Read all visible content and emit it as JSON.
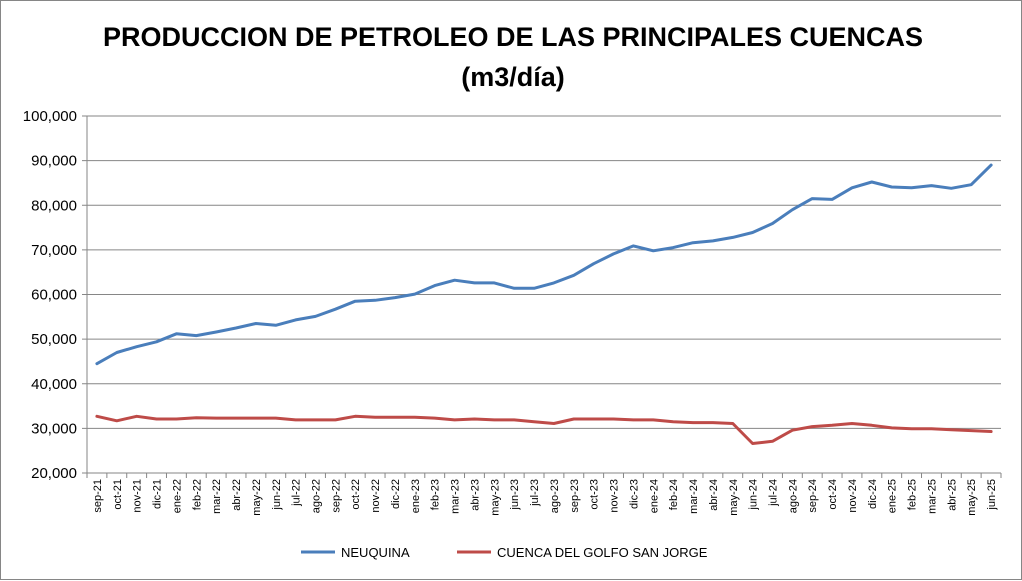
{
  "chart_data": {
    "type": "line",
    "title": "PRODUCCION DE PETROLEO DE LAS PRINCIPALES CUENCAS",
    "subtitle": "(m3/día)",
    "xlabel": "",
    "ylabel": "",
    "ylim": [
      20000,
      100000
    ],
    "yticks": [
      "20,000",
      "30,000",
      "40,000",
      "50,000",
      "60,000",
      "70,000",
      "80,000",
      "90,000",
      "100,000"
    ],
    "grid": true,
    "legend_position": "bottom",
    "categories": [
      "sep-21",
      "oct-21",
      "nov-21",
      "dic-21",
      "ene-22",
      "feb-22",
      "mar-22",
      "abr-22",
      "may-22",
      "jun-22",
      "jul-22",
      "ago-22",
      "sep-22",
      "oct-22",
      "nov-22",
      "dic-22",
      "ene-23",
      "feb-23",
      "mar-23",
      "abr-23",
      "may-23",
      "jun-23",
      "jul-23",
      "ago-23",
      "sep-23",
      "oct-23",
      "nov-23",
      "dic-23",
      "ene-24",
      "feb-24",
      "mar-24",
      "abr-24",
      "may-24",
      "jun-24",
      "jul-24",
      "ago-24",
      "sep-24",
      "oct-24",
      "nov-24",
      "dic-24",
      "ene-25",
      "feb-25",
      "mar-25",
      "abr-25",
      "may-25",
      "jun-25"
    ],
    "series": [
      {
        "name": "NEUQUINA",
        "color": "#4A7EBB",
        "values": [
          44500,
          47000,
          48300,
          49400,
          51200,
          50800,
          51600,
          52500,
          53500,
          53100,
          54300,
          55100,
          56700,
          58500,
          58700,
          59300,
          60100,
          62000,
          63200,
          62600,
          62600,
          61400,
          61400,
          62600,
          64300,
          66900,
          69100,
          70900,
          69800,
          70500,
          71600,
          72000,
          72800,
          73900,
          75900,
          79000,
          81500,
          81300,
          83900,
          85200,
          84100,
          83900,
          84400,
          83800,
          84600,
          89000
        ]
      },
      {
        "name": "CUENCA DEL GOLFO SAN JORGE",
        "color": "#BE4B48",
        "values": [
          32700,
          31700,
          32700,
          32100,
          32100,
          32400,
          32300,
          32300,
          32300,
          32300,
          31900,
          31900,
          31900,
          32700,
          32500,
          32500,
          32500,
          32300,
          31900,
          32100,
          31900,
          31900,
          31500,
          31100,
          32100,
          32100,
          32100,
          31900,
          31900,
          31500,
          31300,
          31300,
          31100,
          26600,
          27100,
          29600,
          30400,
          30700,
          31100,
          30700,
          30100,
          29900,
          29900,
          29700,
          29500,
          29300
        ]
      }
    ]
  }
}
